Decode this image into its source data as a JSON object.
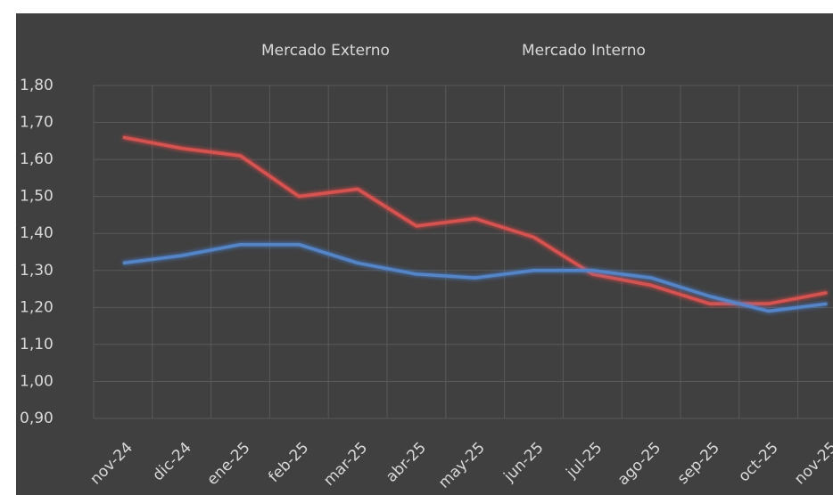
{
  "chart_data": {
    "type": "line",
    "categories": [
      "nov-24",
      "dic-24",
      "ene-25",
      "feb-25",
      "mar-25",
      "abr-25",
      "may-25",
      "jun-25",
      "jul-25",
      "ago-25",
      "sep-25",
      "oct-25",
      "nov-25"
    ],
    "series": [
      {
        "name": "Mercado Externo",
        "color": "#e0504c",
        "values": [
          1.66,
          1.63,
          1.61,
          1.5,
          1.52,
          1.42,
          1.44,
          1.39,
          1.29,
          1.26,
          1.21,
          1.21,
          1.24
        ]
      },
      {
        "name": "Mercado Interno",
        "color": "#4f86cf",
        "values": [
          1.32,
          1.34,
          1.37,
          1.37,
          1.32,
          1.29,
          1.28,
          1.3,
          1.3,
          1.28,
          1.23,
          1.19,
          1.21
        ]
      }
    ],
    "ylim": [
      0.9,
      1.8
    ],
    "yticks": [
      {
        "value": 0.9,
        "label": "0,90"
      },
      {
        "value": 1.0,
        "label": "1,00"
      },
      {
        "value": 1.1,
        "label": "1,10"
      },
      {
        "value": 1.2,
        "label": "1,20"
      },
      {
        "value": 1.3,
        "label": "1,30"
      },
      {
        "value": 1.4,
        "label": "1,40"
      },
      {
        "value": 1.5,
        "label": "1,50"
      },
      {
        "value": 1.6,
        "label": "1,60"
      },
      {
        "value": 1.7,
        "label": "1,70"
      },
      {
        "value": 1.8,
        "label": "1,80"
      }
    ],
    "grid": true,
    "legend": "top"
  }
}
